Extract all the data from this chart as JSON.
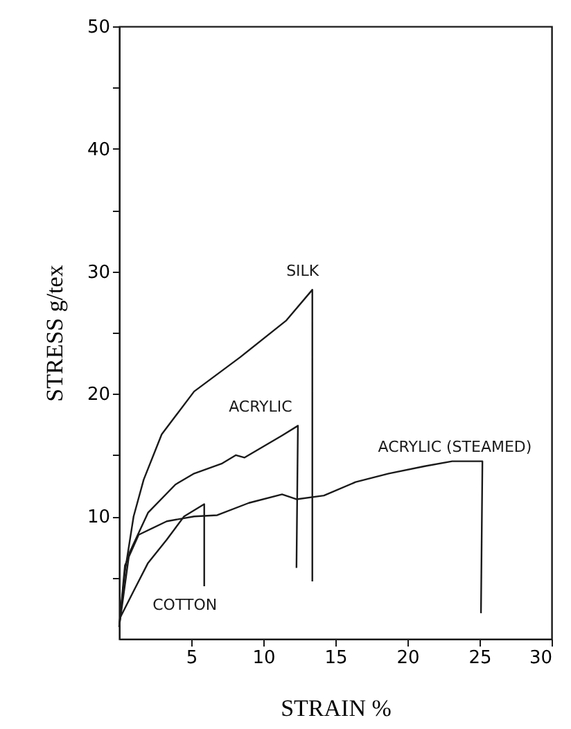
{
  "chart_data": {
    "type": "line",
    "xlabel": "STRAIN %",
    "ylabel": "STRESS g/tex",
    "xlim": [
      0,
      30
    ],
    "ylim": [
      0,
      50
    ],
    "xticks": [
      5,
      10,
      15,
      20,
      25,
      30
    ],
    "yticks": [
      {
        "value": 5,
        "label": null
      },
      10,
      {
        "value": 15,
        "label": null
      },
      20,
      {
        "value": 25,
        "label": null
      },
      30,
      {
        "value": 35,
        "label": null
      },
      40,
      {
        "value": 45,
        "label": null
      },
      50
    ],
    "grid": false,
    "marker": "none",
    "line_style": "solid",
    "series": [
      {
        "color": "#1a1a1a",
        "x": [
          0,
          0.4,
          1.0,
          1.7,
          2.95,
          5.2,
          8.4,
          11.6,
          13.4,
          13.4
        ],
        "values": [
          1,
          5.5,
          10,
          13,
          16.7,
          20.2,
          23,
          26,
          28.5,
          4.7
        ]
      },
      {
        "color": "#1a1a1a",
        "x": [
          0,
          0.7,
          2.0,
          3.9,
          5.2,
          7.1,
          8.1,
          8.7,
          11.3,
          12.4,
          12.3
        ],
        "values": [
          1,
          7,
          10.3,
          12.6,
          13.5,
          14.3,
          15.0,
          14.8,
          16.6,
          17.4,
          5.8
        ]
      },
      {
        "color": "#1a1a1a",
        "x": [
          0,
          0.4,
          1.35,
          3.3,
          5.2,
          6.8,
          9.0,
          11.3,
          12.3,
          14.2,
          16.4,
          18.7,
          21.2,
          23.1,
          25.2,
          25.1
        ],
        "values": [
          1,
          6,
          8.5,
          9.6,
          10.0,
          10.1,
          11.1,
          11.8,
          11.4,
          11.7,
          12.8,
          13.5,
          14.1,
          14.5,
          14.5,
          2.1
        ]
      },
      {
        "color": "#1a1a1a",
        "x": [
          0.05,
          1.0,
          2.0,
          3.3,
          4.5,
          5.9,
          5.9
        ],
        "values": [
          1.7,
          3.9,
          6.2,
          8.1,
          10.0,
          11.0,
          4.3
        ]
      }
    ],
    "annotations": [
      "SILK",
      "ACRYLIC",
      "ACRYLIC (STEAMED)",
      "COTTON"
    ]
  }
}
